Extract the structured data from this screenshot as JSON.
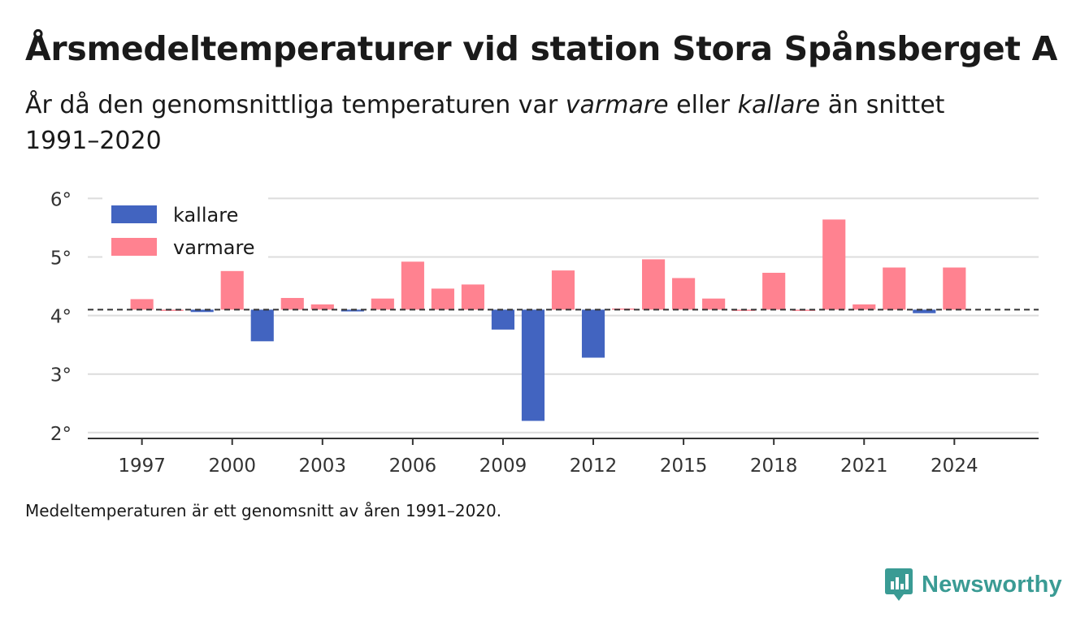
{
  "title": "Årsmedeltemperaturer vid station Stora Spånsberget A",
  "subtitle": {
    "part1": "År då den genomsnittliga temperaturen var ",
    "varm": "varmare",
    "part2": " eller ",
    "kall": "kallare",
    "part3": " än snittet 1991–2020"
  },
  "footnote": "Medeltemperaturen är ett genomsnitt av åren 1991–2020.",
  "brand": "Newsworthy",
  "colors": {
    "kallare": "#4264c0",
    "varmare": "#ff8290",
    "grid": "#dcdcdc",
    "axis": "#333333",
    "brand": "#3a9b94"
  },
  "chart_data": {
    "type": "bar",
    "baseline": 4.1,
    "ylim": [
      1.9,
      6.2
    ],
    "yticks": [
      2,
      3,
      4,
      5,
      6
    ],
    "ytick_labels": [
      "2°",
      "3°",
      "4°",
      "5°",
      "6°"
    ],
    "xticks": [
      1997,
      2000,
      2003,
      2006,
      2009,
      2012,
      2015,
      2018,
      2021,
      2024
    ],
    "xlim": [
      1995.2,
      2026.8
    ],
    "legend": {
      "position": "top-left",
      "entries": [
        {
          "label": "kallare",
          "color": "#4264c0"
        },
        {
          "label": "varmare",
          "color": "#ff8290"
        }
      ]
    },
    "grid": true,
    "years": [
      1997,
      1998,
      1999,
      2000,
      2001,
      2002,
      2003,
      2004,
      2005,
      2006,
      2007,
      2008,
      2009,
      2010,
      2011,
      2012,
      2013,
      2014,
      2015,
      2016,
      2017,
      2018,
      2019,
      2020,
      2021,
      2022,
      2023,
      2024
    ],
    "values": [
      4.28,
      4.1,
      4.06,
      4.76,
      3.56,
      4.3,
      4.19,
      4.07,
      4.29,
      4.92,
      4.46,
      4.53,
      3.76,
      2.2,
      4.77,
      3.28,
      4.12,
      4.96,
      4.64,
      4.29,
      4.1,
      4.73,
      4.1,
      5.64,
      4.19,
      4.82,
      4.04,
      4.82
    ]
  }
}
